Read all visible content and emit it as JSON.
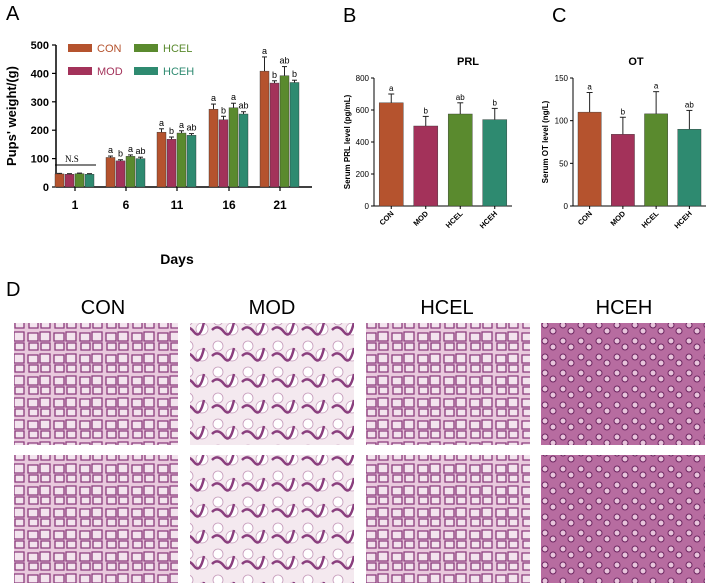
{
  "panel_labels": [
    "A",
    "B",
    "C",
    "D"
  ],
  "colors": {
    "CON": "#b5532e",
    "MOD": "#a3325a",
    "HCEL": "#5a8a2e",
    "HCEH": "#2e8a70"
  },
  "chart_data": [
    {
      "type": "bar",
      "panel": "A",
      "xlabel": "Days",
      "ylabel": "Pups' weight/(g)",
      "ylim": [
        0,
        500
      ],
      "yticks": [
        "0",
        "100",
        "200",
        "300",
        "400",
        "500"
      ],
      "categories": [
        "1",
        "6",
        "11",
        "16",
        "21"
      ],
      "legend": [
        "CON",
        "MOD",
        "HCEL",
        "HCEH"
      ],
      "series": [
        {
          "name": "CON",
          "values": [
            46,
            104,
            193,
            274,
            408
          ],
          "errors": [
            2,
            5,
            12,
            18,
            50
          ],
          "sig": [
            "",
            "a",
            "a",
            "a",
            "a"
          ]
        },
        {
          "name": "MOD",
          "values": [
            45,
            92,
            168,
            237,
            366
          ],
          "errors": [
            2,
            4,
            8,
            12,
            8
          ],
          "sig": [
            "",
            "b",
            "b",
            "b",
            "b"
          ]
        },
        {
          "name": "HCEL",
          "values": [
            47,
            108,
            190,
            279,
            392
          ],
          "errors": [
            2,
            5,
            8,
            16,
            32
          ],
          "sig": [
            "",
            "a",
            "a",
            "a",
            "ab"
          ]
        },
        {
          "name": "HCEH",
          "values": [
            45,
            100,
            182,
            257,
            368
          ],
          "errors": [
            2,
            5,
            6,
            8,
            8
          ],
          "sig": [
            "",
            "ab",
            "ab",
            "ab",
            "b"
          ]
        }
      ],
      "annotation": "N.S"
    },
    {
      "type": "bar",
      "panel": "B",
      "title": "PRL",
      "ylabel": "Serum PRL level (pg/mL)",
      "ylim": [
        0,
        800
      ],
      "yticks": [
        "0",
        "200",
        "400",
        "600",
        "800"
      ],
      "categories": [
        "CON",
        "MOD",
        "HCEL",
        "HCEH"
      ],
      "values": [
        645,
        500,
        575,
        540
      ],
      "errors": [
        55,
        60,
        70,
        70
      ],
      "sig": [
        "a",
        "b",
        "ab",
        "b"
      ]
    },
    {
      "type": "bar",
      "panel": "C",
      "title": "OT",
      "ylabel": "Serum OT level (ng/L)",
      "ylim": [
        0,
        150
      ],
      "yticks": [
        "0",
        "50",
        "100",
        "150"
      ],
      "categories": [
        "CON",
        "MOD",
        "HCEL",
        "HCEH"
      ],
      "values": [
        110,
        84,
        108,
        90
      ],
      "errors": [
        23,
        20,
        26,
        22
      ],
      "sig": [
        "a",
        "b",
        "a",
        "ab"
      ]
    }
  ],
  "histology": {
    "columns": [
      "CON",
      "MOD",
      "HCEL",
      "HCEH"
    ]
  }
}
